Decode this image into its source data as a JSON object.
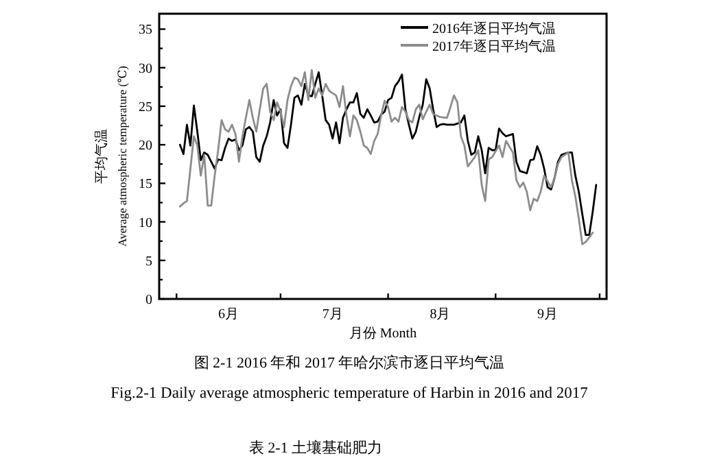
{
  "chart_data": {
    "type": "line",
    "xlabel": "月份 Month",
    "ylabel": "平均气温\nAverage atmospheric temperature (℃)",
    "xlim": [
      "--05-27",
      "--10-03"
    ],
    "ylim": [
      0,
      37
    ],
    "xticks": [
      {
        "value": "--06-01",
        "label": null
      },
      {
        "value": "--06-16",
        "label": "6月"
      },
      {
        "value": "--07-01",
        "label": null
      },
      {
        "value": "--07-16",
        "label": "7月"
      },
      {
        "value": "--08-01",
        "label": null
      },
      {
        "value": "--08-16",
        "label": "8月"
      },
      {
        "value": "--09-01",
        "label": null
      },
      {
        "value": "--09-16",
        "label": "9月"
      },
      {
        "value": "--10-01",
        "label": null
      }
    ],
    "yticks": [
      0,
      {
        "value": 2.5,
        "label": null
      },
      5,
      {
        "value": 7.5,
        "label": null
      },
      10,
      {
        "value": 12.5,
        "label": null
      },
      15,
      {
        "value": 17.5,
        "label": null
      },
      20,
      {
        "value": 22.5,
        "label": null
      },
      25,
      {
        "value": 27.5,
        "label": null
      },
      30,
      {
        "value": 32.5,
        "label": null
      },
      35
    ],
    "legend": "top right",
    "grid": false,
    "marker": "none",
    "line_style": "solid",
    "series": [
      {
        "name": "2016年逐日平均气温",
        "color": "#000000",
        "x": [
          "--06-02",
          "--06-03",
          "--06-04",
          "--06-05",
          "--06-06",
          "--06-07",
          "--06-08",
          "--06-09",
          "--06-10",
          "--06-11",
          "--06-12",
          "--06-13",
          "--06-14",
          "--06-15",
          "--06-16",
          "--06-17",
          "--06-18",
          "--06-19",
          "--06-20",
          "--06-21",
          "--06-22",
          "--06-23",
          "--06-24",
          "--06-25",
          "--06-26",
          "--06-27",
          "--06-28",
          "--06-29",
          "--06-30",
          "--07-01",
          "--07-02",
          "--07-03",
          "--07-04",
          "--07-05",
          "--07-06",
          "--07-07",
          "--07-08",
          "--07-09",
          "--07-10",
          "--07-11",
          "--07-12",
          "--07-13",
          "--07-14",
          "--07-15",
          "--07-16",
          "--07-17",
          "--07-18",
          "--07-19",
          "--07-20",
          "--07-21",
          "--07-22",
          "--07-23",
          "--07-24",
          "--07-25",
          "--07-26",
          "--07-27",
          "--07-28",
          "--07-29",
          "--07-30",
          "--07-31",
          "--08-01",
          "--08-02",
          "--08-03",
          "--08-04",
          "--08-05",
          "--08-06",
          "--08-07",
          "--08-08",
          "--08-09",
          "--08-10",
          "--08-11",
          "--08-12",
          "--08-13",
          "--08-14",
          "--08-15",
          "--08-16",
          "--08-17",
          "--08-18",
          "--08-20",
          "--08-22",
          "--08-23",
          "--08-24",
          "--08-25",
          "--08-26",
          "--08-27",
          "--08-28",
          "--08-29",
          "--08-30",
          "--08-31",
          "--09-01",
          "--09-02",
          "--09-03",
          "--09-04",
          "--09-06",
          "--09-07",
          "--09-08",
          "--09-10",
          "--09-11",
          "--09-12",
          "--09-13",
          "--09-14",
          "--09-15",
          "--09-16",
          "--09-17",
          "--09-18",
          "--09-19",
          "--09-20",
          "--09-22",
          "--09-23",
          "--09-24",
          "--09-25",
          "--09-26",
          "--09-27",
          "--09-28",
          "--09-29",
          "--09-30"
        ],
        "values": [
          20.0,
          18.8,
          22.6,
          19.9,
          25.1,
          21.7,
          18.0,
          19.0,
          18.7,
          17.8,
          16.9,
          18.1,
          18.0,
          19.6,
          20.8,
          20.5,
          20.7,
          19.3,
          19.9,
          22.0,
          22.3,
          21.7,
          18.4,
          17.8,
          19.9,
          21.1,
          22.9,
          25.8,
          23.8,
          24.6,
          20.2,
          19.6,
          22.6,
          26.1,
          26.4,
          25.2,
          27.9,
          26.4,
          26.3,
          27.9,
          29.4,
          26.4,
          23.2,
          22.6,
          20.8,
          22.9,
          20.2,
          23.5,
          24.6,
          25.5,
          25.5,
          26.7,
          24.0,
          23.5,
          24.6,
          23.8,
          22.9,
          23.0,
          23.9,
          24.3,
          25.8,
          26.1,
          27.6,
          28.2,
          29.1,
          24.6,
          22.6,
          20.8,
          21.7,
          23.6,
          25.2,
          28.5,
          27.3,
          24.6,
          22.3,
          22.6,
          22.7,
          22.6,
          22.6,
          22.9,
          23.8,
          20.5,
          18.7,
          19.0,
          21.1,
          19.3,
          16.3,
          19.6,
          19.3,
          19.3,
          22.1,
          21.5,
          21.1,
          21.4,
          17.8,
          16.6,
          16.3,
          18.0,
          18.1,
          19.8,
          18.7,
          16.9,
          14.5,
          14.2,
          15.7,
          17.8,
          18.7,
          19.0,
          19.0,
          16.0,
          13.9,
          11.0,
          8.3,
          8.3,
          11.3,
          14.8
        ]
      },
      {
        "name": "2017年逐日平均气温",
        "color": "#8c8c8c",
        "x": [
          "--06-02",
          "--06-03",
          "--06-04",
          "--06-05",
          "--06-06",
          "--06-07",
          "--06-08",
          "--06-09",
          "--06-10",
          "--06-11",
          "--06-12",
          "--06-13",
          "--06-14",
          "--06-15",
          "--06-16",
          "--06-17",
          "--06-18",
          "--06-19",
          "--06-20",
          "--06-21",
          "--06-22",
          "--06-23",
          "--06-24",
          "--06-25",
          "--06-26",
          "--06-27",
          "--06-28",
          "--06-29",
          "--06-30",
          "--07-01",
          "--07-02",
          "--07-03",
          "--07-04",
          "--07-05",
          "--07-06",
          "--07-07",
          "--07-08",
          "--07-09",
          "--07-10",
          "--07-11",
          "--07-12",
          "--07-13",
          "--07-14",
          "--07-15",
          "--07-16",
          "--07-17",
          "--07-18",
          "--07-19",
          "--07-20",
          "--07-21",
          "--07-22",
          "--07-23",
          "--07-24",
          "--07-25",
          "--07-26",
          "--07-27",
          "--07-28",
          "--07-29",
          "--07-30",
          "--07-31",
          "--08-01",
          "--08-02",
          "--08-03",
          "--08-04",
          "--08-05",
          "--08-06",
          "--08-07",
          "--08-08",
          "--08-09",
          "--08-10",
          "--08-11",
          "--08-12",
          "--08-13",
          "--08-14",
          "--08-16",
          "--08-18",
          "--08-19",
          "--08-20",
          "--08-21",
          "--08-22",
          "--08-23",
          "--08-24",
          "--08-26",
          "--08-27",
          "--08-28",
          "--08-29",
          "--08-30",
          "--08-31",
          "--09-02",
          "--09-03",
          "--09-04",
          "--09-06",
          "--09-07",
          "--09-08",
          "--09-09",
          "--09-10",
          "--09-11",
          "--09-12",
          "--09-13",
          "--09-14",
          "--09-15",
          "--09-17",
          "--09-18",
          "--09-19",
          "--09-20",
          "--09-22",
          "--09-23",
          "--09-24",
          "--09-25",
          "--09-26",
          "--09-27",
          "--09-29"
        ],
        "values": [
          12.0,
          12.4,
          12.7,
          16.9,
          21.1,
          19.9,
          16.0,
          18.7,
          12.1,
          12.1,
          16.0,
          19.3,
          23.2,
          22.0,
          21.7,
          22.6,
          21.4,
          17.8,
          21.1,
          23.5,
          25.8,
          23.5,
          21.7,
          24.6,
          27.3,
          27.9,
          24.3,
          23.2,
          25.5,
          24.3,
          22.3,
          25.8,
          27.6,
          28.7,
          28.5,
          27.6,
          29.4,
          25.8,
          29.7,
          26.1,
          27.3,
          26.4,
          27.9,
          27.0,
          26.7,
          26.4,
          24.9,
          27.6,
          23.8,
          21.1,
          23.8,
          23.2,
          21.7,
          19.9,
          19.6,
          18.8,
          20.5,
          21.4,
          23.8,
          25.7,
          24.9,
          23.0,
          23.5,
          23.0,
          24.9,
          24.3,
          23.2,
          22.9,
          24.6,
          25.2,
          23.3,
          24.3,
          25.2,
          24.0,
          23.6,
          23.5,
          24.9,
          26.4,
          25.5,
          21.1,
          19.9,
          17.2,
          18.4,
          19.3,
          14.8,
          12.7,
          18.1,
          18.4,
          19.9,
          18.4,
          20.5,
          19.0,
          15.4,
          14.5,
          15.1,
          13.9,
          11.5,
          13.0,
          12.7,
          13.9,
          16.0,
          14.5,
          15.7,
          17.5,
          18.4,
          19.0,
          15.4,
          13.3,
          10.4,
          7.1,
          7.4,
          8.6
        ]
      }
    ],
    "annotations": [
      "图 2-1 2016 年和 2017 年哈尔滨市逐日平均气温",
      "Fig.2-1 Daily average atmospheric temperature of Harbin in 2016 and 2017",
      "表 2-1  土壤基础肥力"
    ]
  }
}
